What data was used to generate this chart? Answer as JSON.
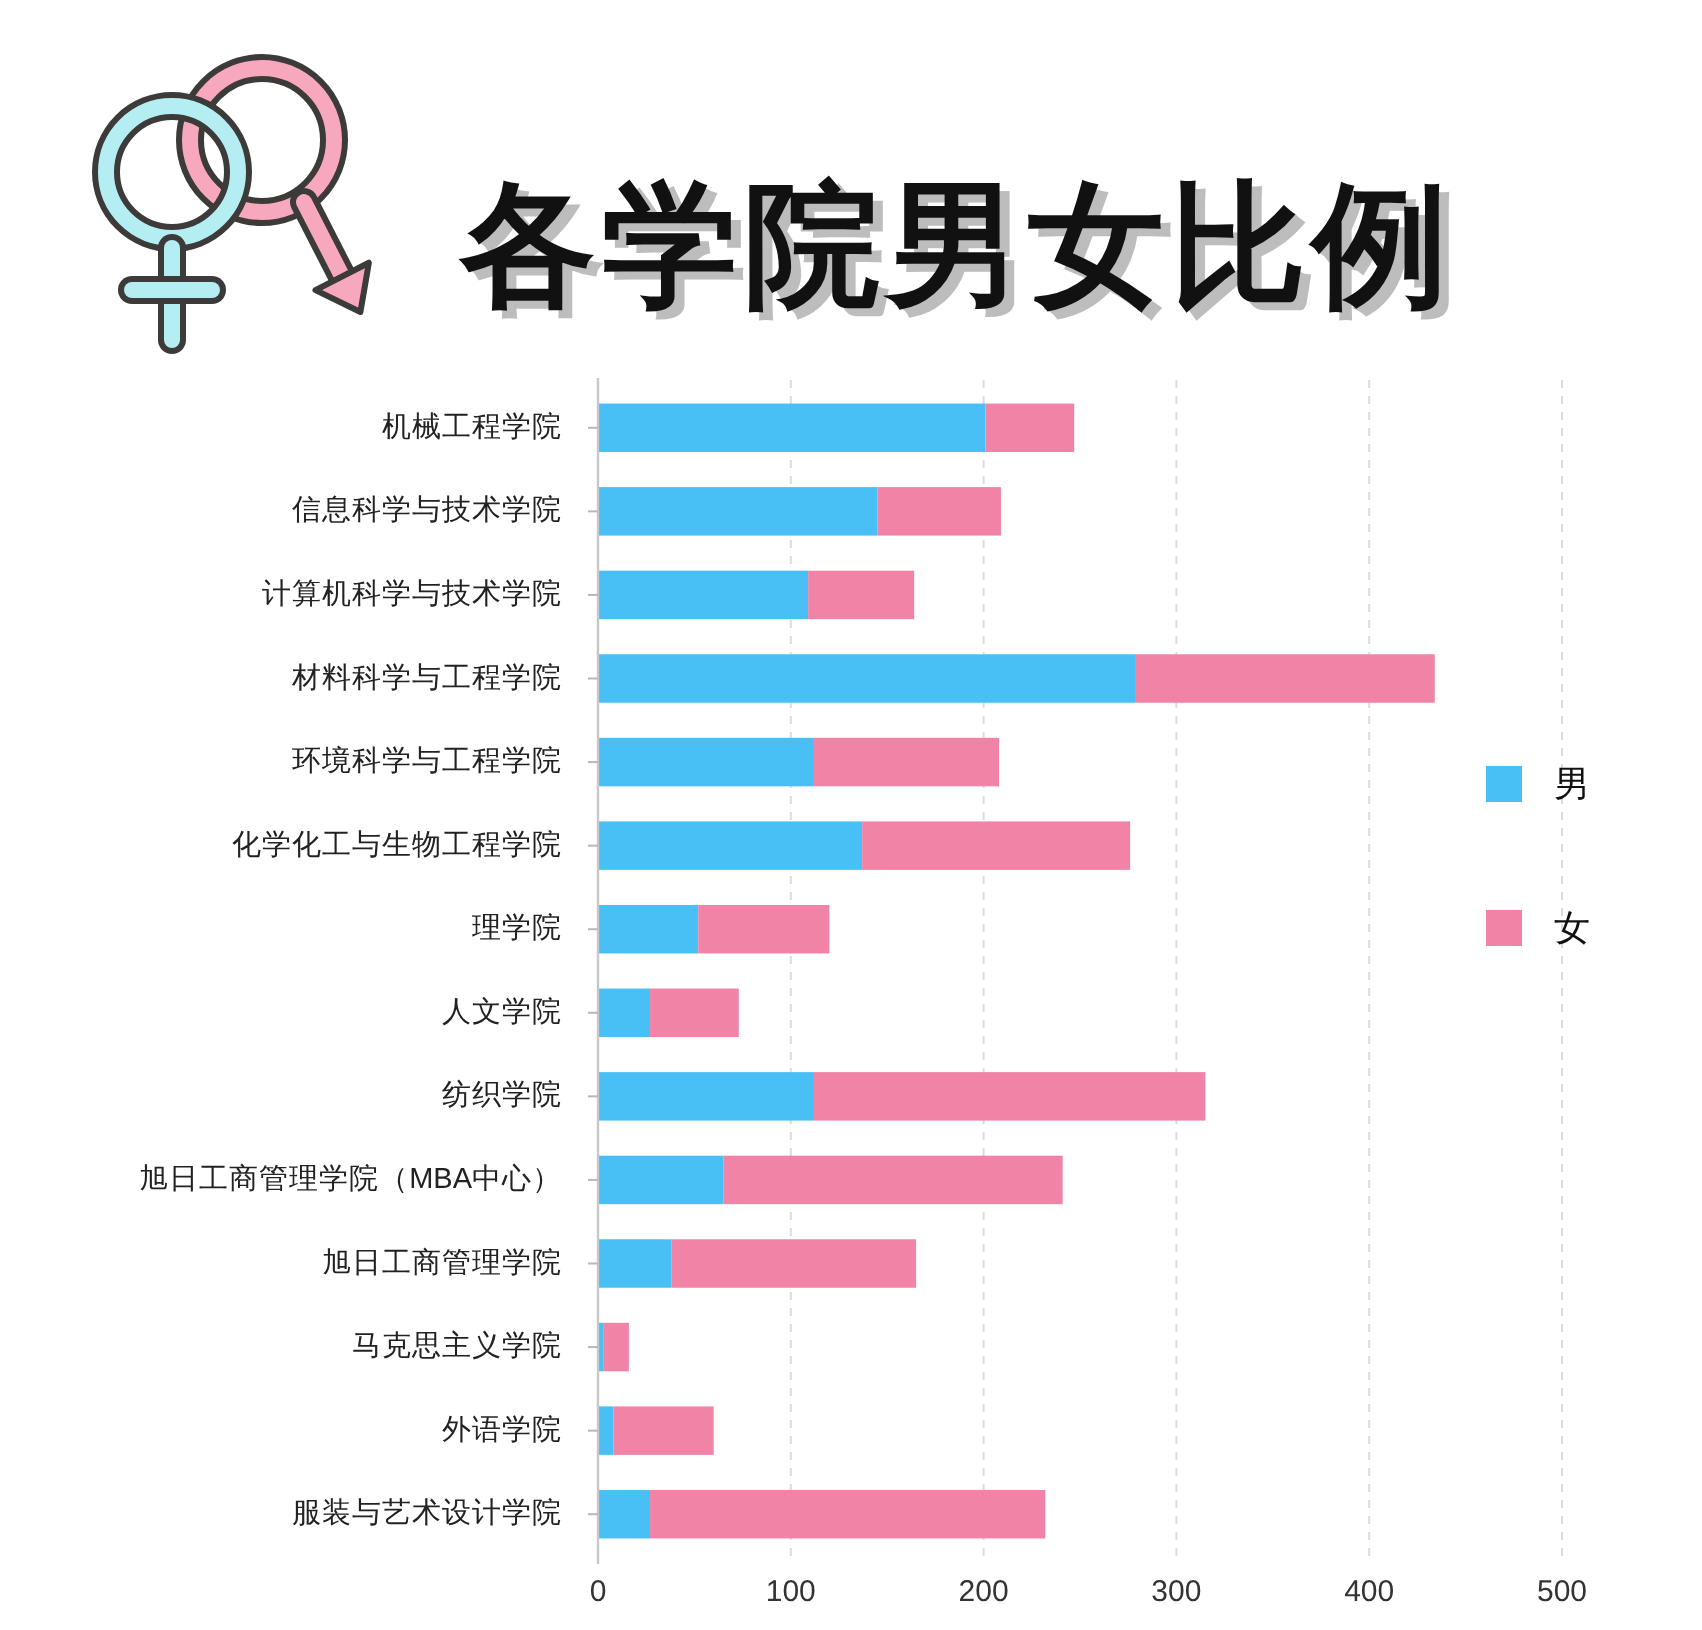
{
  "chart_data": {
    "type": "bar",
    "orientation": "horizontal",
    "stacked": true,
    "title": "各学院男女比例",
    "categories": [
      "机械工程学院",
      "信息科学与技术学院",
      "计算机科学与技术学院",
      "材料科学与工程学院",
      "环境科学与工程学院",
      "化学化工与生物工程学院",
      "理学院",
      "人文学院",
      "纺织学院",
      "旭日工商管理学院（MBA中心）",
      "旭日工商管理学院",
      "马克思主义学院",
      "外语学院",
      "服装与艺术设计学院"
    ],
    "series": [
      {
        "name": "男",
        "color": "#49c0f5",
        "values": [
          201,
          145,
          109,
          279,
          112,
          137,
          52,
          27,
          112,
          65,
          38,
          3,
          8,
          27
        ]
      },
      {
        "name": "女",
        "color": "#f083a6",
        "values": [
          46,
          64,
          55,
          155,
          96,
          139,
          68,
          46,
          203,
          176,
          127,
          13,
          52,
          205
        ]
      }
    ],
    "xlim": [
      0,
      500
    ],
    "xticks": [
      0,
      100,
      200,
      300,
      400,
      500
    ],
    "grid": "x",
    "legend": "right"
  }
}
